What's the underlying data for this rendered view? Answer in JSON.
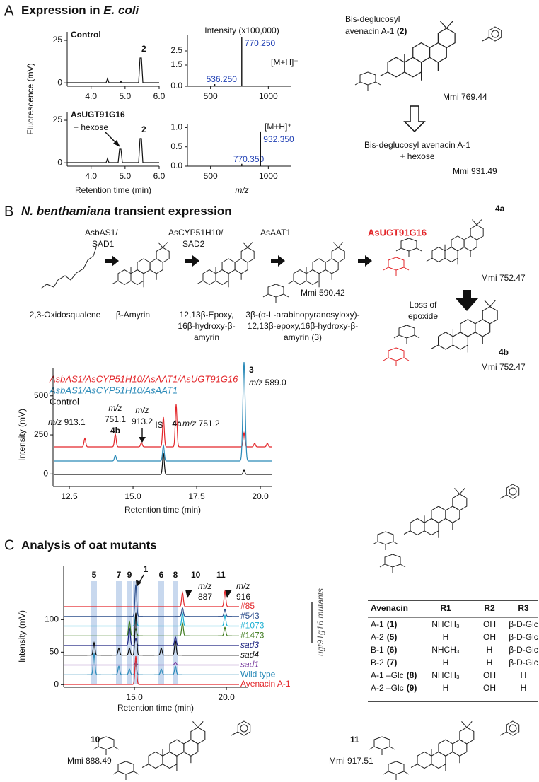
{
  "panel_a": {
    "letter": "A",
    "title": "Expression in ",
    "title_italic": "E. coli",
    "chromatogram": {
      "y_label": "Fluorescence (mV)",
      "x_label": "Retention time (min)",
      "xlim": [
        3.3,
        6.0
      ],
      "xticks": [
        {
          "value": 4,
          "label": "4.0"
        },
        {
          "value": 5,
          "label": "5.0"
        },
        {
          "value": 6,
          "label": "6.0"
        }
      ],
      "ylim": [
        -2,
        30
      ],
      "yticks": [
        0,
        25
      ],
      "plots": [
        {
          "label": "Control",
          "peak_label": "2"
        },
        {
          "label": "AsUGT91G16",
          "annotation": "+ hexose",
          "peak_label": "2"
        }
      ]
    },
    "mass_spectra": {
      "title": "Intensity (x100,000)",
      "x_label": "m/z",
      "xlim": [
        300,
        1200
      ],
      "xticks": [
        500,
        1000
      ],
      "plots": [
        {
          "ylim": [
            0,
            3.6
          ],
          "yticks": [
            {
              "value": 0,
              "label": "0.0"
            },
            {
              "value": 1.5,
              "label": "1.5"
            },
            {
              "value": 2.5,
              "label": "2.5"
            }
          ],
          "x": [
            536.25,
            770.25
          ],
          "values": [
            0.15,
            3.5
          ],
          "value_labels": [
            "536.250",
            "770.250"
          ],
          "annotation": "[M+H]⁺"
        },
        {
          "ylim": [
            0,
            1.1
          ],
          "yticks": [
            {
              "value": 0,
              "label": "0.0"
            },
            {
              "value": 0.5,
              "label": "0.5"
            },
            {
              "value": 1,
              "label": "1.0"
            }
          ],
          "x": [
            770.35,
            932.35
          ],
          "values": [
            0.06,
            0.9
          ],
          "value_labels": [
            "770.350",
            "932.350"
          ],
          "annotation": "[M+H]⁺"
        }
      ]
    },
    "compound": {
      "name_line1": "Bis-deglucosyl",
      "name_line2": "avenacin A-1 ",
      "number": "(2)",
      "mmi": "Mmi 769.44"
    },
    "product": {
      "line1": "Bis-deglucosyl avenacin A-1",
      "line2": "+ hexose",
      "mmi": "Mmi 931.49"
    }
  },
  "panel_b": {
    "letter": "B",
    "title_italic": "N. benthamiana",
    "title": " transient expression",
    "enzymes": [
      [
        "AsbAS1/",
        "SAD1"
      ],
      [
        "AsCYP51H10/",
        "SAD2"
      ],
      [
        "AsAAT1"
      ],
      [
        "AsUGT91G16"
      ]
    ],
    "compounds": [
      [
        "2,3-Oxidosqualene"
      ],
      [
        "β-Amyrin"
      ],
      [
        "12,13β-Epoxy,",
        "16β-hydroxy-β-",
        "amyrin"
      ],
      [
        "3β-(α-L-arabinopyranosyloxy)-",
        "12,13β-epoxy,16β-hydroxy-β-",
        "amyrin (3)"
      ]
    ],
    "mmi_3": "Mmi 590.42",
    "label_4a": "4a",
    "mmi_4a": "Mmi 752.47",
    "loss": [
      "Loss of",
      "epoxide"
    ],
    "label_4b": "4b",
    "mmi_4b": "Mmi 752.47",
    "chromatogram": {
      "y_label": "Intensity (mV)",
      "x_label": "Retention time (min)",
      "xlim": [
        11.86,
        20.47
      ],
      "xticks": [
        12.5,
        {
          "value": 15,
          "label": "15.0"
        },
        17.5,
        {
          "value": 20,
          "label": "20.0"
        }
      ],
      "ylim": [
        -80,
        680
      ],
      "yticks": [
        0,
        250,
        500
      ],
      "series": [
        {
          "name": "AsbAS1/AsCYP51H10/AsAAT1/AsUGT91G16",
          "color": "#e3262a"
        },
        {
          "name": "AsbAS1/AsCYP51H10/AsAAT1",
          "color": "#2a8ab8"
        },
        {
          "name": "Control",
          "color": "#111111"
        }
      ],
      "mz": "m/z",
      "annotations": {
        "peak_3": "3",
        "mz_3": " 589.0",
        "mz_913_1": " 913.1",
        "mz_751_1": "751.1",
        "peak_4b": "4b",
        "mz_913_2": "913.2",
        "is": "IS",
        "peak_4a": "4a",
        "mz_751_2": " 751.2"
      }
    }
  },
  "panel_c": {
    "letter": "C",
    "title": "Analysis of oat mutants",
    "chromatogram": {
      "y_label": "Intensity (mV)",
      "x_label": "Retention time (min)",
      "xlim": [
        11.15,
        21.15
      ],
      "xticks": [
        {
          "value": 15,
          "label": "15.0"
        },
        {
          "value": 20,
          "label": "20.0"
        }
      ],
      "ylim": [
        -4,
        183
      ],
      "yticks": [
        0,
        50,
        100
      ],
      "peak_labels": [
        "5",
        "7",
        "9",
        "1",
        "6",
        "8",
        "10",
        "11"
      ],
      "mz": "m/z",
      "mz_10": "887",
      "mz_11": "916",
      "mutants_label": "ugt91g16 mutants",
      "series": [
        {
          "name": "#85",
          "color": "#e3262a"
        },
        {
          "name": "#543",
          "color": "#2c4e8c"
        },
        {
          "name": "#1073",
          "color": "#19afd2"
        },
        {
          "name": "#1473",
          "color": "#3d7a1c"
        },
        {
          "name": "sad3",
          "color": "#1d2380"
        },
        {
          "name": "sad4",
          "color": "#111111"
        },
        {
          "name": "sad1",
          "color": "#7b3fa0"
        },
        {
          "name": "Wild type",
          "color": "#2a8ab8"
        },
        {
          "name": "Avenacin A-1",
          "color": "#e3262a"
        }
      ]
    },
    "table": {
      "header": [
        "Avenacin",
        "R1",
        "R2",
        "R3"
      ],
      "rows": [
        [
          "A-1",
          "(1)",
          "NHCH₃",
          "OH",
          "β-D-Glc"
        ],
        [
          "A-2",
          "(5)",
          "H",
          "OH",
          "β-D-Glc"
        ],
        [
          "B-1",
          "(6)",
          "NHCH₃",
          "H",
          "β-D-Glc"
        ],
        [
          "B-2",
          "(7)",
          "H",
          "H",
          "β-D-Glc"
        ],
        [
          "A-1 –Glc",
          "(8)",
          "NHCH₃",
          "OH",
          "H"
        ],
        [
          "A-2 –Glc",
          "(9)",
          "H",
          "OH",
          "H"
        ]
      ]
    },
    "compound_10": {
      "number": "10",
      "mmi": "Mmi 888.49"
    },
    "compound_11": {
      "number": "11",
      "mmi": "Mmi 917.51"
    }
  }
}
